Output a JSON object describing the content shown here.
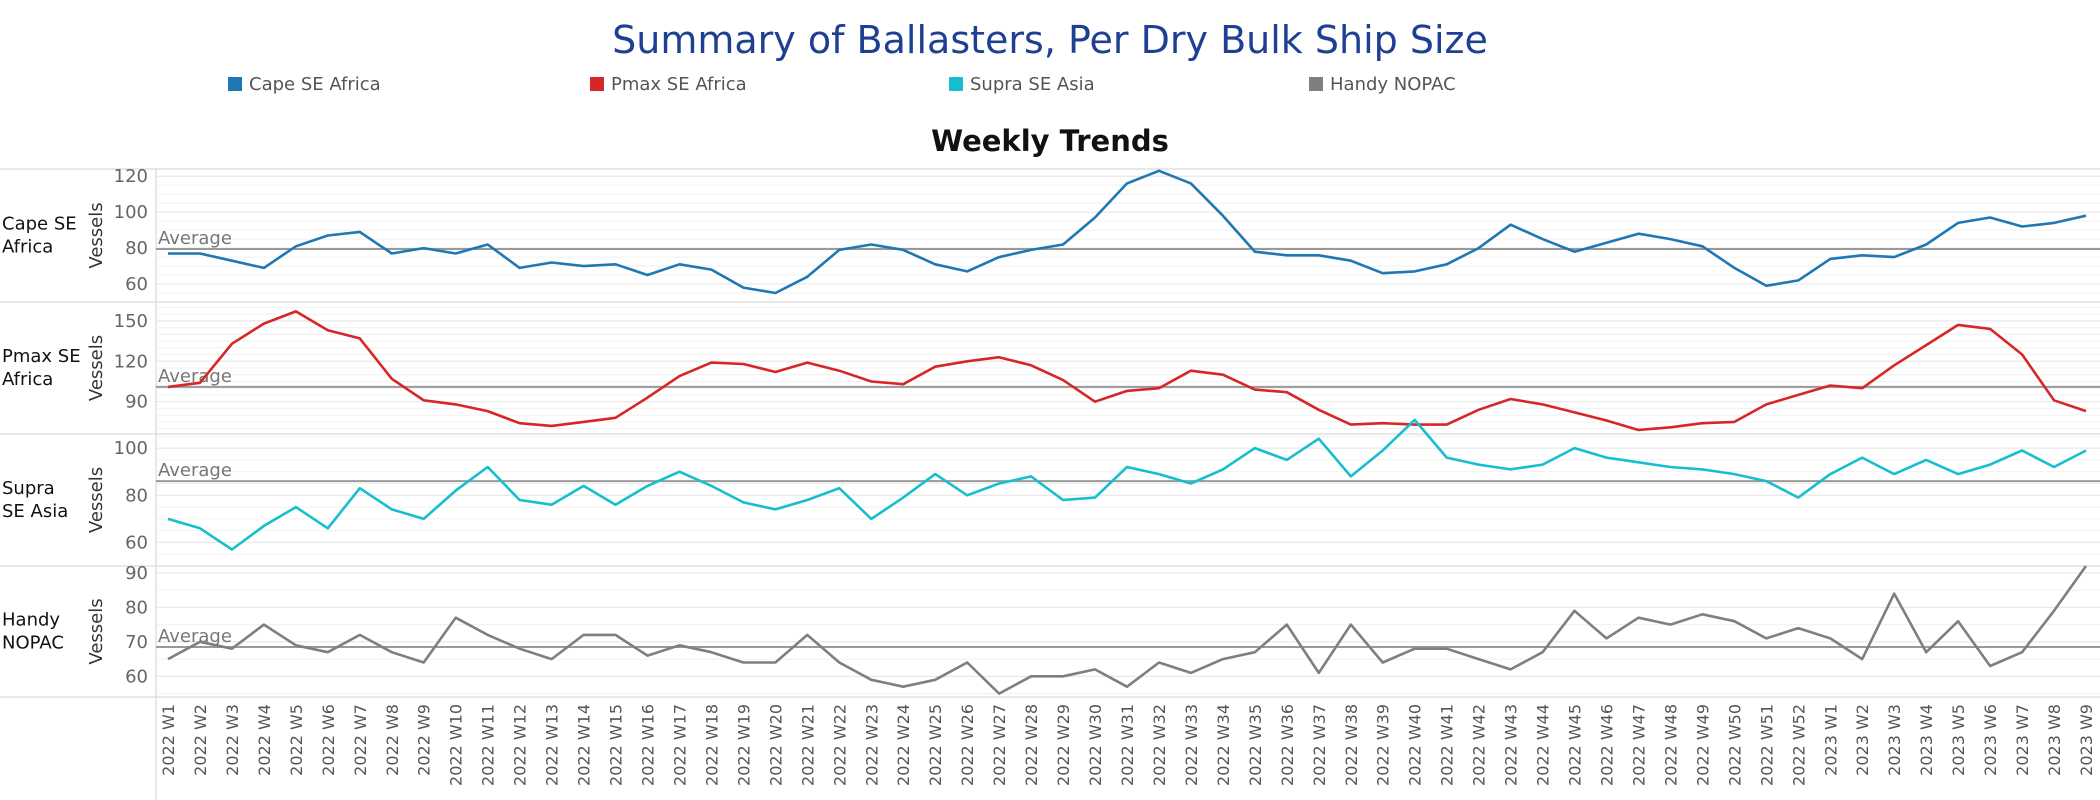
{
  "header": {
    "title": "Summary of Ballasters, Per Dry Bulk Ship Size",
    "subtitle": "Weekly Trends"
  },
  "legend": [
    {
      "label": "Cape SE Africa",
      "color": "#1f77b4"
    },
    {
      "label": "Pmax SE Africa",
      "color": "#d62728"
    },
    {
      "label": "Supra SE Asia",
      "color": "#17becf"
    },
    {
      "label": "Handy NOPAC",
      "color": "#7f7f7f"
    }
  ],
  "chart_data": {
    "type": "line",
    "title": "Weekly Trends",
    "x": [
      "2022 W1",
      "2022 W2",
      "2022 W3",
      "2022 W4",
      "2022 W5",
      "2022 W6",
      "2022 W7",
      "2022 W8",
      "2022 W9",
      "2022 W10",
      "2022 W11",
      "2022 W12",
      "2022 W13",
      "2022 W14",
      "2022 W15",
      "2022 W16",
      "2022 W17",
      "2022 W18",
      "2022 W19",
      "2022 W20",
      "2022 W21",
      "2022 W22",
      "2022 W23",
      "2022 W24",
      "2022 W25",
      "2022 W26",
      "2022 W27",
      "2022 W28",
      "2022 W29",
      "2022 W30",
      "2022 W31",
      "2022 W32",
      "2022 W33",
      "2022 W34",
      "2022 W35",
      "2022 W36",
      "2022 W37",
      "2022 W38",
      "2022 W39",
      "2022 W40",
      "2022 W41",
      "2022 W42",
      "2022 W43",
      "2022 W44",
      "2022 W45",
      "2022 W46",
      "2022 W47",
      "2022 W48",
      "2022 W49",
      "2022 W50",
      "2022 W51",
      "2022 W52",
      "2023 W1",
      "2023 W2",
      "2023 W3",
      "2023 W4",
      "2023 W5",
      "2023 W6",
      "2023 W7",
      "2023 W8",
      "2023 W9"
    ],
    "reference_line_label": "Average",
    "grid": true,
    "panels": [
      {
        "name": "Cape SE Africa",
        "ylabel": "Vessels",
        "color": "#1f77b4",
        "ylim": [
          50,
          124
        ],
        "yticks": [
          60,
          80,
          100,
          120
        ],
        "average": 79.5,
        "values": [
          77,
          77,
          73,
          69,
          81,
          87,
          89,
          77,
          80,
          77,
          82,
          69,
          72,
          70,
          71,
          65,
          71,
          68,
          58,
          55,
          64,
          79,
          82,
          79,
          71,
          67,
          75,
          79,
          82,
          97,
          116,
          123,
          116,
          98,
          78,
          76,
          76,
          73,
          66,
          67,
          71,
          80,
          93,
          85,
          78,
          83,
          88,
          85,
          81,
          69,
          59,
          62,
          74,
          76,
          75,
          82,
          94,
          97,
          92,
          94,
          98
        ]
      },
      {
        "name": "Pmax SE Africa",
        "ylabel": "Vessels",
        "color": "#d62728",
        "ylim": [
          66,
          164
        ],
        "yticks": [
          90,
          120,
          150
        ],
        "average": 101,
        "values": [
          101,
          104,
          133,
          148,
          157,
          143,
          137,
          107,
          91,
          88,
          83,
          74,
          72,
          75,
          78,
          93,
          109,
          119,
          118,
          112,
          119,
          113,
          105,
          103,
          116,
          120,
          123,
          117,
          106,
          90,
          98,
          100,
          113,
          110,
          99,
          97,
          84,
          73,
          74,
          73,
          73,
          84,
          92,
          88,
          82,
          76,
          69,
          71,
          74,
          75,
          88,
          95,
          102,
          100,
          117,
          132,
          147,
          144,
          125,
          91,
          83
        ]
      },
      {
        "name": "Supra SE Asia",
        "ylabel": "Vessels",
        "color": "#17becf",
        "ylim": [
          50,
          106
        ],
        "yticks": [
          60,
          80,
          100
        ],
        "average": 86,
        "values": [
          70,
          66,
          57,
          67,
          75,
          66,
          83,
          74,
          70,
          82,
          92,
          78,
          76,
          84,
          76,
          84,
          90,
          84,
          77,
          74,
          78,
          83,
          70,
          79,
          89,
          80,
          85,
          88,
          78,
          79,
          92,
          89,
          85,
          91,
          100,
          95,
          104,
          88,
          99,
          112,
          96,
          93,
          91,
          93,
          100,
          96,
          94,
          92,
          91,
          89,
          86,
          79,
          89,
          96,
          89,
          95,
          89,
          93,
          99,
          92,
          99
        ]
      },
      {
        "name": "Handy NOPAC",
        "ylabel": "Vessels",
        "color": "#7f7f7f",
        "ylim": [
          54,
          92
        ],
        "yticks": [
          60,
          70,
          80,
          90
        ],
        "average": 68.5,
        "values": [
          65,
          70,
          68,
          75,
          69,
          67,
          72,
          67,
          64,
          77,
          72,
          68,
          65,
          72,
          72,
          66,
          69,
          67,
          64,
          64,
          72,
          64,
          59,
          57,
          59,
          64,
          55,
          60,
          60,
          62,
          57,
          64,
          61,
          65,
          67,
          75,
          61,
          75,
          64,
          68,
          68,
          65,
          62,
          67,
          79,
          71,
          77,
          75,
          78,
          76,
          71,
          74,
          71,
          65,
          84,
          67,
          76,
          63,
          67,
          79,
          92
        ]
      }
    ]
  }
}
